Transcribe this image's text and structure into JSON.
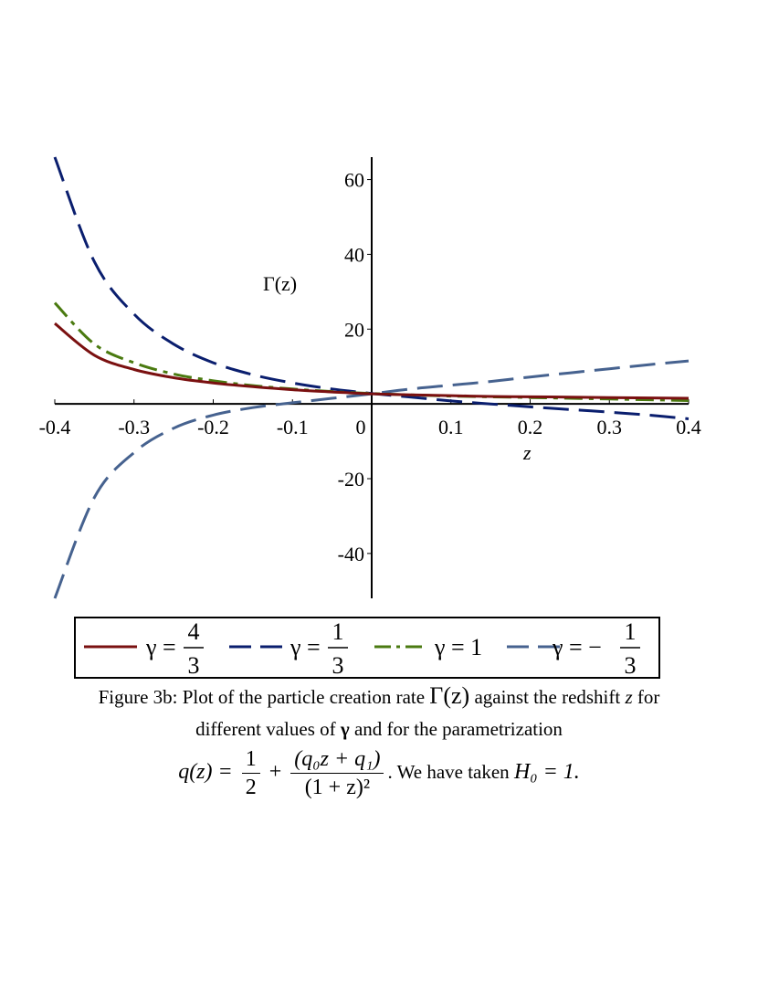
{
  "chart_data": {
    "type": "line",
    "xlabel": "z",
    "ylabel": "Γ(z)",
    "xlim": [
      -0.4,
      0.4
    ],
    "ylim": [
      -52,
      66
    ],
    "x_ticks": [
      "-0.4",
      "-0.3",
      "-0.2",
      "-0.1",
      "0",
      "0.1",
      "0.2",
      "0.3",
      "0.4"
    ],
    "x_tick_values": [
      -0.4,
      -0.3,
      -0.2,
      -0.1,
      0,
      0.1,
      0.2,
      0.3,
      0.4
    ],
    "y_ticks": [
      "60",
      "40",
      "20",
      "-20",
      "-40"
    ],
    "y_tick_values": [
      60,
      40,
      20,
      -20,
      -40
    ],
    "grid": false,
    "legend_position": "bottom",
    "series": [
      {
        "legend_prefix": "γ =",
        "legend_num": "4",
        "legend_den": "3",
        "color": "#7a1010",
        "dash": "solid",
        "x": [
          -0.4,
          -0.35,
          -0.3,
          -0.25,
          -0.2,
          -0.15,
          -0.1,
          -0.05,
          0,
          0.05,
          0.1,
          0.15,
          0.2,
          0.25,
          0.3,
          0.35,
          0.4
        ],
        "y": [
          21.5,
          13,
          9.2,
          7,
          5.6,
          4.6,
          3.8,
          3.2,
          2.7,
          2.4,
          2.2,
          2.0,
          1.9,
          1.8,
          1.7,
          1.6,
          1.5
        ]
      },
      {
        "legend_prefix": "γ =",
        "legend_num": "1",
        "legend_den": "3",
        "color": "#0a1e6e",
        "dash": "long",
        "x": [
          -0.4,
          -0.35,
          -0.3,
          -0.25,
          -0.2,
          -0.15,
          -0.1,
          -0.05,
          0,
          0.05,
          0.1,
          0.15,
          0.2,
          0.25,
          0.3,
          0.35,
          0.4
        ],
        "y": [
          66,
          38,
          24,
          16,
          11,
          7.8,
          5.6,
          4,
          2.8,
          1.8,
          0.8,
          0,
          -0.8,
          -1.5,
          -2.2,
          -3,
          -4
        ]
      },
      {
        "legend_prefix": "γ = 1",
        "legend_num": "",
        "legend_den": "",
        "color": "#4a7a10",
        "dash": "dashdot",
        "x": [
          -0.4,
          -0.35,
          -0.3,
          -0.25,
          -0.2,
          -0.15,
          -0.1,
          -0.05,
          0,
          0.05,
          0.1,
          0.15,
          0.2,
          0.25,
          0.3,
          0.35,
          0.4
        ],
        "y": [
          27,
          16,
          11,
          8,
          6.2,
          4.9,
          4,
          3.3,
          2.8,
          2.4,
          2.1,
          1.9,
          1.7,
          1.5,
          1.3,
          1.1,
          0.9
        ]
      },
      {
        "legend_prefix": "γ = −",
        "legend_num": "1",
        "legend_den": "3",
        "color": "#46628f",
        "dash": "long",
        "x": [
          -0.4,
          -0.35,
          -0.3,
          -0.25,
          -0.2,
          -0.15,
          -0.1,
          -0.05,
          0,
          0.05,
          0.1,
          0.15,
          0.2,
          0.25,
          0.3,
          0.35,
          0.4
        ],
        "y": [
          -52,
          -25,
          -13,
          -6.5,
          -3,
          -1,
          0.3,
          1.5,
          2.7,
          4,
          5,
          6,
          7.2,
          8.3,
          9.4,
          10.5,
          11.5
        ]
      }
    ]
  },
  "caption": {
    "line1_before": "Figure 3b: Plot of the particle creation rate ",
    "line1_gamma": "Γ(z)",
    "line1_mid": " against the redshift ",
    "line1_z": "z",
    "line1_after": " for",
    "line2_before": "different values of ",
    "line2_gamma": "γ",
    "line2_after": " and for the parametrization",
    "f_lhs": "q(z) =",
    "f_half_num": "1",
    "f_half_den": "2",
    "f_plus": "+",
    "f_num": "(q₀z + q₁)",
    "f_den": "(1 + z)²",
    "f_tail": ". We have taken ",
    "f_h0": "H₀ = 1."
  }
}
